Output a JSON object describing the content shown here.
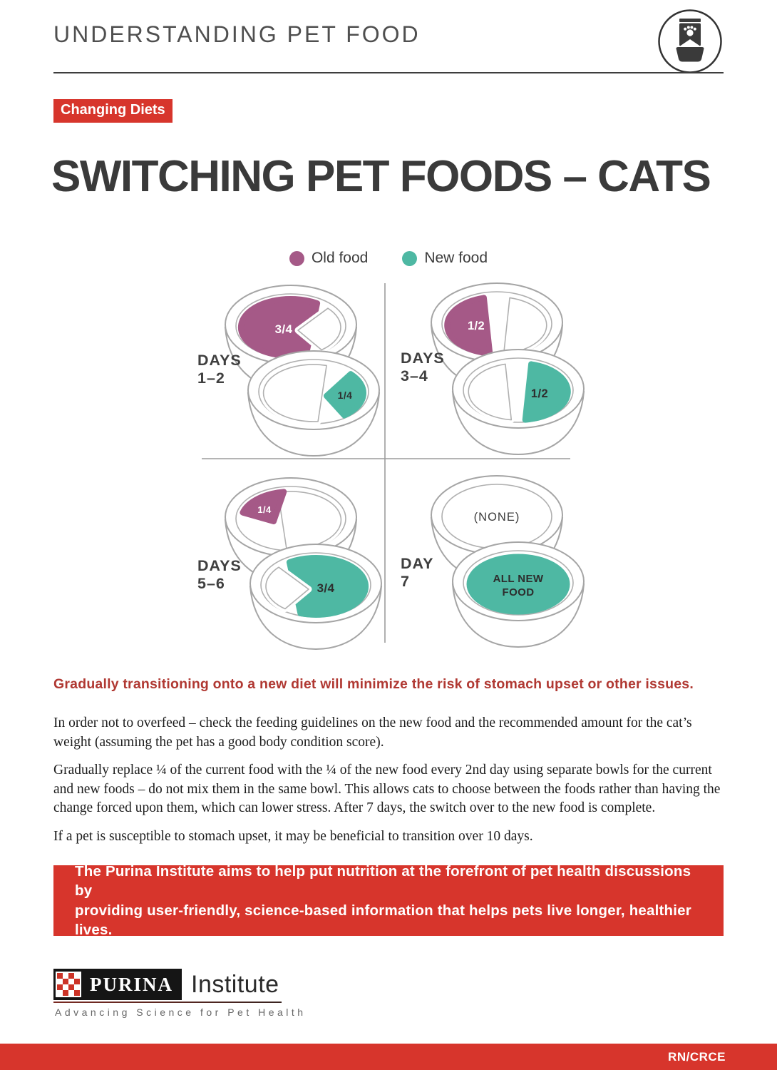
{
  "header": {
    "title": "UNDERSTANDING PET FOOD",
    "icon": "pet-food-bag-and-bowl"
  },
  "badge": {
    "label": "Changing Diets"
  },
  "main_title": "SWITCHING PET FOODS – CATS",
  "legend": {
    "items": [
      {
        "label": "Old food",
        "color": "#a55987"
      },
      {
        "label": "New food",
        "color": "#4eb8a3"
      }
    ]
  },
  "diagram": {
    "colors": {
      "old": "#a55987",
      "new": "#4eb8a3"
    },
    "quadrants": [
      {
        "day_label": [
          "DAYS",
          "1–2"
        ],
        "bowls": [
          {
            "food": "old",
            "variant": "big-left",
            "label": "3/4",
            "label_color": "#ffffff"
          },
          {
            "food": "new",
            "variant": "small-right",
            "label": "1/4",
            "label_color": "#2e2e2e"
          }
        ]
      },
      {
        "day_label": [
          "DAYS",
          "3–4"
        ],
        "bowls": [
          {
            "food": "old",
            "variant": "half-left",
            "label": "1/2",
            "label_color": "#ffffff"
          },
          {
            "food": "new",
            "variant": "half-right",
            "label": "1/2",
            "label_color": "#2e2e2e"
          }
        ]
      },
      {
        "day_label": [
          "DAYS",
          "5–6"
        ],
        "bowls": [
          {
            "food": "old",
            "variant": "small-left",
            "label": "1/4",
            "label_color": "#ffffff"
          },
          {
            "food": "new",
            "variant": "big-right",
            "label": "3/4",
            "label_color": "#2e2e2e"
          }
        ]
      },
      {
        "day_label": [
          "DAY",
          "7"
        ],
        "bowls": [
          {
            "food": "none",
            "variant": "none",
            "label": "(NONE)",
            "label_color": "#3c3c3c"
          },
          {
            "food": "new",
            "variant": "all",
            "label": "ALL NEW\nFOOD",
            "label_color": "#2d2d2d"
          }
        ]
      }
    ]
  },
  "tagline": "Gradually transitioning onto a new diet will minimize the risk of stomach upset or other issues.",
  "paragraphs": [
    "In order not to overfeed – check the feeding guidelines on the new food and the recommended amount for the cat’s weight (assuming the pet has a good body condition score).",
    "Gradually replace ¼ of the current food with the ¼ of the new food every 2nd day using separate bowls for the current and new foods – do not mix them in the same bowl. This allows cats to choose between the foods rather than having the change forced upon them, which can lower stress. After 7 days, the switch over to the new food is complete.",
    "If a pet is susceptible to stomach upset, it may be beneficial to transition over 10 days."
  ],
  "banner": {
    "lines": [
      "The Purina Institute aims to help put nutrition at the forefront of pet health discussions by",
      "providing user-friendly, science-based information that helps pets live longer, healthier lives."
    ]
  },
  "logo": {
    "brand": "PURINA",
    "suffix": "Institute",
    "subtitle": "Advancing Science for Pet Health",
    "checker_red": "#cc3327"
  },
  "footer": {
    "code": "RN/CRCE"
  }
}
